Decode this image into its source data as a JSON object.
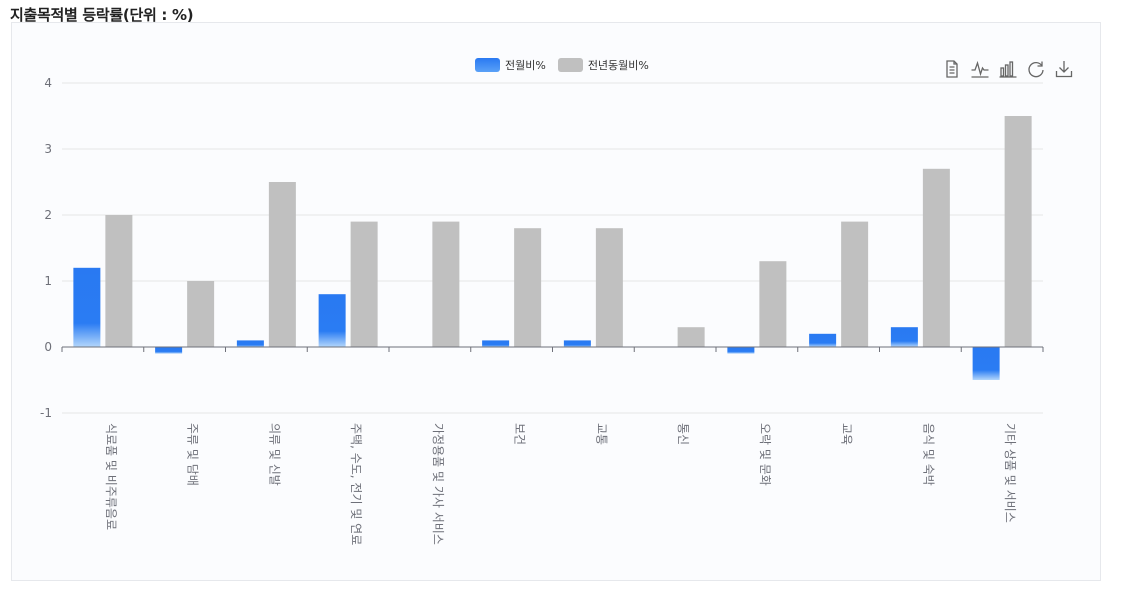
{
  "page": {
    "title": "지출목적별 등락률(단위 : %)"
  },
  "toolbox": {
    "items": [
      {
        "name": "data-view-icon"
      },
      {
        "name": "line-chart-icon"
      },
      {
        "name": "bar-chart-icon"
      },
      {
        "name": "restore-icon"
      },
      {
        "name": "download-icon"
      }
    ]
  },
  "colors": {
    "series1": "#2979f2",
    "series1_light": "#a9cffa",
    "series2": "#c0c0c0",
    "grid": "#e6e6e6",
    "axis": "#6e7079"
  },
  "chart_data": {
    "type": "bar",
    "categories": [
      "식료품 및 비주류음료",
      "주류 및 담배",
      "의류 및 신발",
      "주택, 수도, 전기 및 연료",
      "가정용품 및 가사 서비스",
      "보건",
      "교통",
      "통신",
      "오락 및 문화",
      "교육",
      "음식 및 숙박",
      "기타 상품 및 서비스"
    ],
    "series": [
      {
        "name": "전월비%",
        "values": [
          1.2,
          -0.1,
          0.1,
          0.8,
          0.0,
          0.1,
          0.1,
          0.0,
          -0.1,
          0.2,
          0.3,
          -0.5
        ]
      },
      {
        "name": "전년동월비%",
        "values": [
          2.0,
          1.0,
          2.5,
          1.9,
          1.9,
          1.8,
          1.8,
          0.3,
          1.3,
          1.9,
          2.7,
          3.5
        ]
      }
    ],
    "ylim": [
      -1,
      4
    ],
    "yticks": [
      "-1",
      "0",
      "1",
      "2",
      "3",
      "4"
    ],
    "legend_position": "top-center",
    "grid": true
  }
}
